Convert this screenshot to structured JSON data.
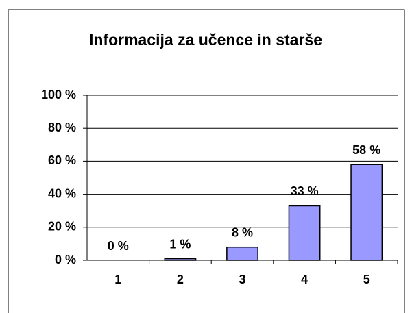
{
  "chart_data": {
    "type": "bar",
    "title": "Informacija za učence in starše",
    "categories": [
      "1",
      "2",
      "3",
      "4",
      "5"
    ],
    "values": [
      0,
      1,
      8,
      33,
      58
    ],
    "value_labels": [
      "0 %",
      "1 %",
      "8 %",
      "33 %",
      "58 %"
    ],
    "color": "#9999ff",
    "ylim": [
      0,
      100
    ],
    "yticks": [
      {
        "value": 0,
        "label": "0 %"
      },
      {
        "value": 20,
        "label": "20 %"
      },
      {
        "value": 40,
        "label": "40 %"
      },
      {
        "value": 60,
        "label": "60 %"
      },
      {
        "value": 80,
        "label": "80 %"
      },
      {
        "value": 100,
        "label": "100 %"
      }
    ],
    "grid": true
  }
}
